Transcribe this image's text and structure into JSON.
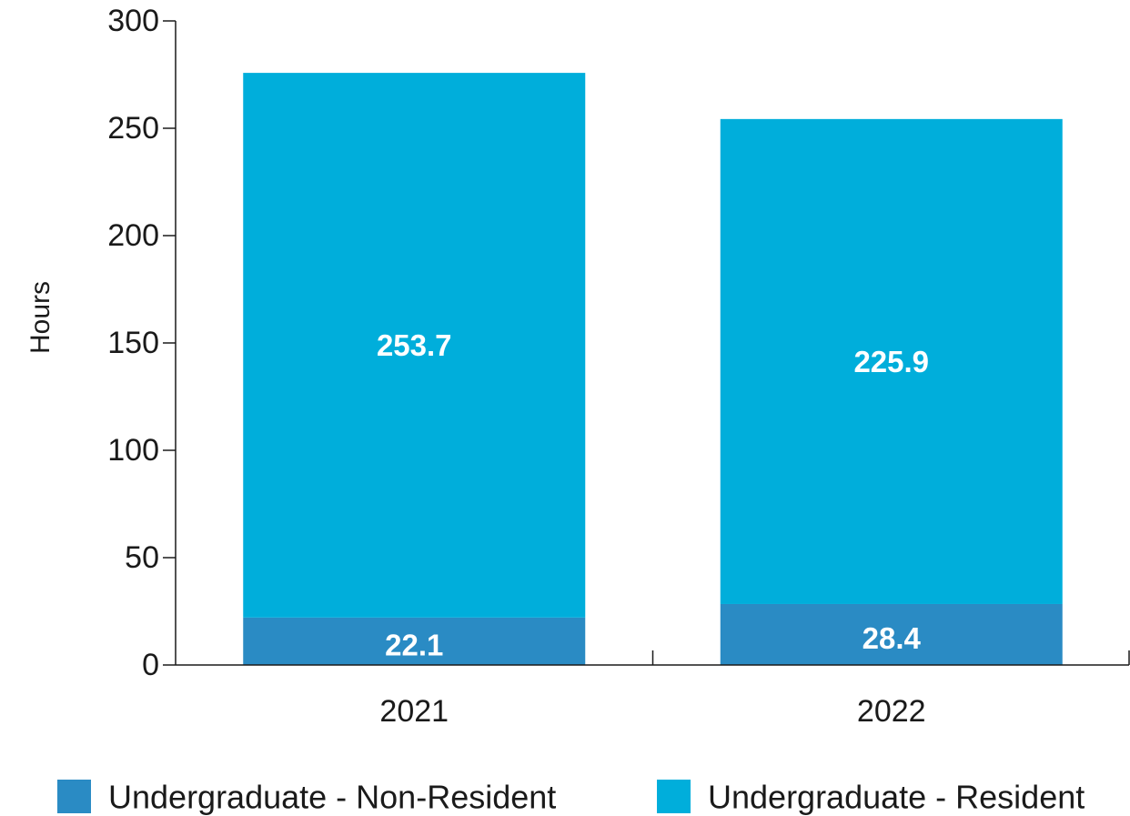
{
  "chart_data": {
    "type": "bar",
    "stacked": true,
    "categories": [
      "2021",
      "2022"
    ],
    "series": [
      {
        "name": "Undergraduate - Non-Resident",
        "values": [
          22.1,
          28.4
        ],
        "labels": [
          "22.1",
          "28.4"
        ],
        "color": "#2a8bc4"
      },
      {
        "name": "Undergraduate - Resident",
        "values": [
          253.7,
          225.9
        ],
        "labels": [
          "253.7",
          "225.9"
        ],
        "color": "#00aedb"
      }
    ],
    "ylabel": "Hours",
    "ylim": [
      0,
      300
    ],
    "yticks": [
      "0",
      "50",
      "100",
      "150",
      "200",
      "250",
      "300"
    ],
    "legend_position": "bottom",
    "grid": false
  }
}
